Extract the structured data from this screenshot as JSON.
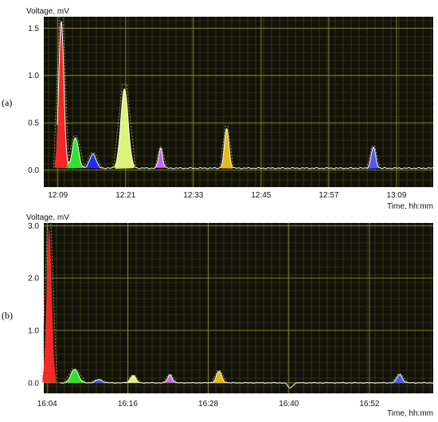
{
  "chart_data": [
    {
      "type": "line",
      "panel_label": "(a)",
      "ylabel": "Voltage, mV",
      "xlabel": "Time, hh:mm",
      "x_ticks": [
        "12:09",
        "12:21",
        "12:33",
        "12:45",
        "12:57",
        "13:09"
      ],
      "x_tick_minutes": [
        729,
        741,
        753,
        765,
        777,
        789
      ],
      "y_ticks": [
        "0.0",
        "0.5",
        "1.0",
        "1.5"
      ],
      "y_tick_values": [
        0,
        0.5,
        1.0,
        1.5
      ],
      "xlim": [
        726.5,
        795.5
      ],
      "ylim": [
        -0.18,
        1.62
      ],
      "grid": true,
      "baseline": 0.02,
      "peaks": [
        {
          "t": 729.6,
          "h": 1.55,
          "w": 0.45,
          "color": "#ff2a2a"
        },
        {
          "t": 732.1,
          "h": 0.32,
          "w": 0.55,
          "color": "#33ee33"
        },
        {
          "t": 735.2,
          "h": 0.15,
          "w": 0.55,
          "color": "#2b2bff"
        },
        {
          "t": 740.8,
          "h": 0.84,
          "w": 0.65,
          "color": "#e8ff80"
        },
        {
          "t": 747.2,
          "h": 0.21,
          "w": 0.35,
          "color": "#d070ff"
        },
        {
          "t": 758.9,
          "h": 0.42,
          "w": 0.4,
          "color": "#f2c21c"
        },
        {
          "t": 784.9,
          "h": 0.22,
          "w": 0.4,
          "color": "#5c5cff"
        }
      ]
    },
    {
      "type": "line",
      "panel_label": "(b)",
      "ylabel": "Voltage, mV",
      "xlabel": "Time, hh:mm",
      "x_ticks": [
        "16:04",
        "16:16",
        "16:28",
        "16:40",
        "16:52"
      ],
      "x_tick_minutes": [
        964,
        976,
        988,
        1000,
        1012
      ],
      "y_ticks": [
        "0.0",
        "1.0",
        "2.0",
        "3.0"
      ],
      "y_tick_values": [
        0,
        1.0,
        2.0,
        3.0
      ],
      "xlim": [
        963.5,
        1021.5
      ],
      "ylim": [
        -0.2,
        3.05
      ],
      "grid": true,
      "baseline": 0.0,
      "dip": {
        "t": 1000.2,
        "depth": -0.1
      },
      "peaks": [
        {
          "t": 964.3,
          "h": 2.92,
          "w": 0.38,
          "color": "#ff2a2a"
        },
        {
          "t": 968.1,
          "h": 0.26,
          "w": 0.55,
          "color": "#33ee33"
        },
        {
          "t": 971.7,
          "h": 0.06,
          "w": 0.5,
          "color": "#4a4aff"
        },
        {
          "t": 976.8,
          "h": 0.14,
          "w": 0.4,
          "color": "#e8ff80"
        },
        {
          "t": 982.3,
          "h": 0.15,
          "w": 0.35,
          "color": "#d070ff"
        },
        {
          "t": 989.6,
          "h": 0.22,
          "w": 0.4,
          "color": "#f2c21c"
        },
        {
          "t": 1016.5,
          "h": 0.16,
          "w": 0.4,
          "color": "#5c5cff"
        }
      ]
    }
  ],
  "colors": {
    "plot_background": "#11110a",
    "minor_grid": "#4a4a14",
    "major_grid": "#8a8a2a",
    "signal": "#ffffff",
    "envelope": "#bbbb66"
  }
}
